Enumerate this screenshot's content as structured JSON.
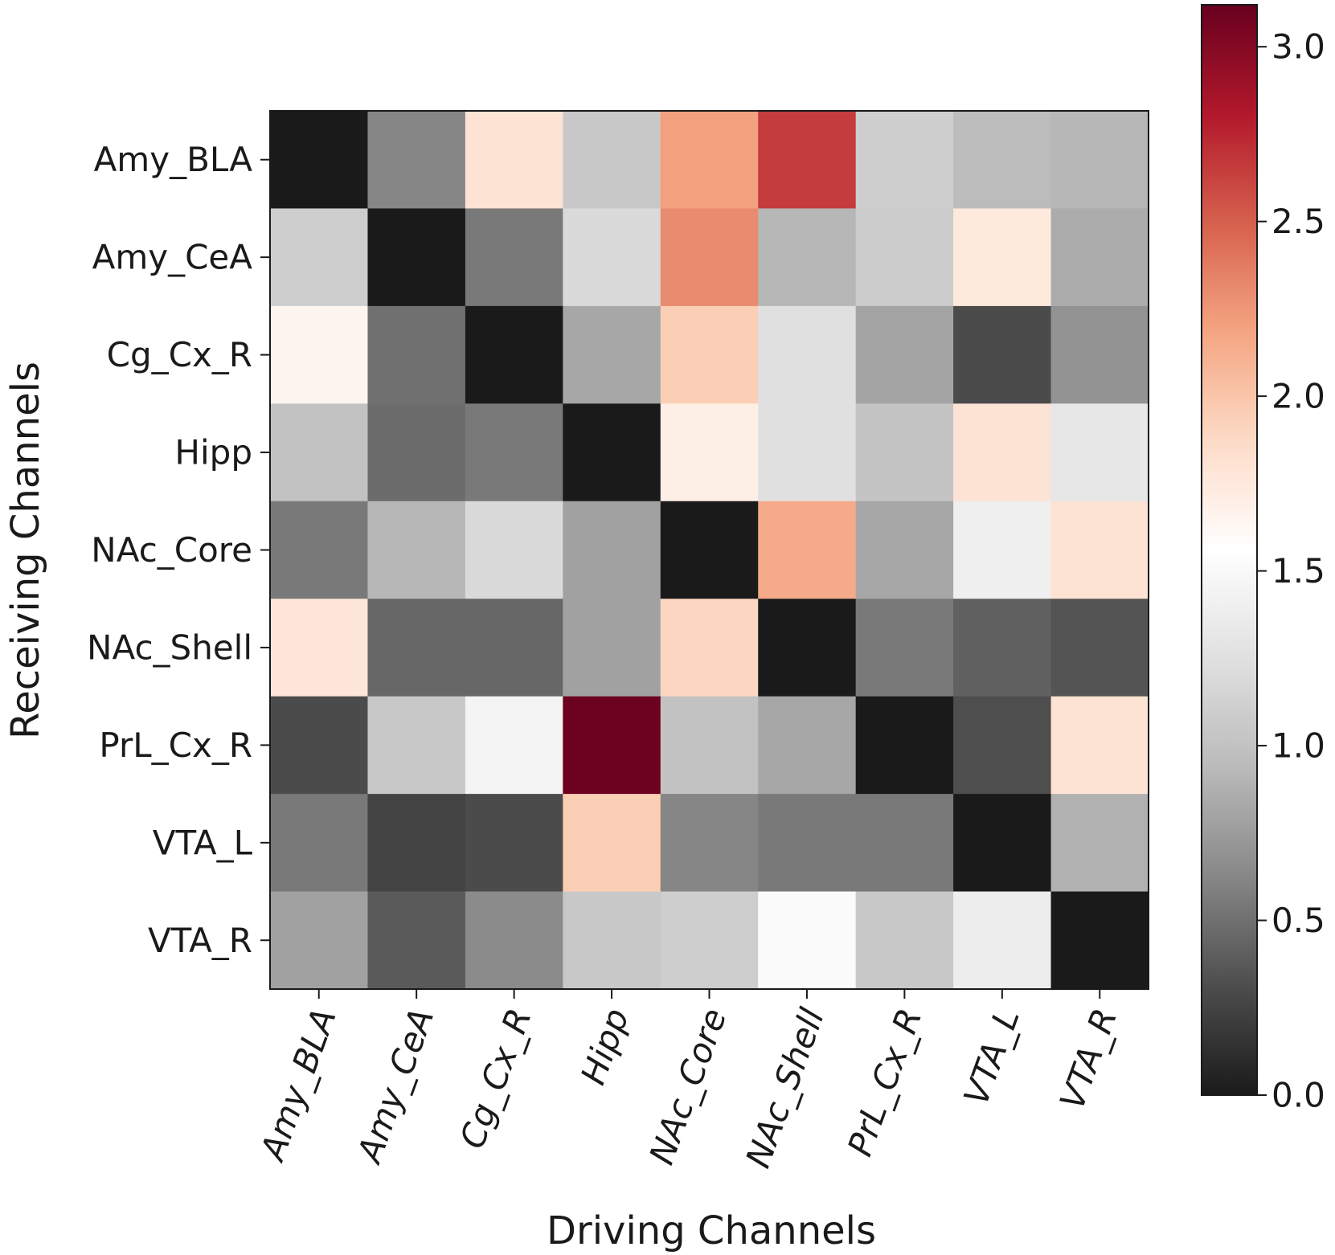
{
  "chart_data": {
    "type": "heatmap",
    "title": "",
    "xlabel": "Driving Channels",
    "ylabel": "Receiving Channels",
    "x_categories": [
      "Amy_BLA",
      "Amy_CeA",
      "Cg_Cx_R",
      "Hipp",
      "NAc_Core",
      "NAc_Shell",
      "PrL_Cx_R",
      "VTA_L",
      "VTA_R"
    ],
    "y_categories": [
      "Amy_BLA",
      "Amy_CeA",
      "Cg_Cx_R",
      "Hipp",
      "NAc_Core",
      "NAc_Shell",
      "PrL_Cx_R",
      "VTA_L",
      "VTA_R"
    ],
    "values": [
      [
        0.0,
        0.62,
        1.8,
        1.05,
        2.2,
        2.65,
        1.1,
        0.95,
        0.92
      ],
      [
        1.1,
        0.0,
        0.55,
        1.2,
        2.3,
        0.92,
        1.08,
        1.75,
        0.85
      ],
      [
        1.65,
        0.5,
        0.0,
        0.82,
        1.95,
        1.25,
        0.8,
        0.3,
        0.7
      ],
      [
        1.0,
        0.48,
        0.55,
        0.0,
        1.7,
        1.25,
        1.02,
        1.8,
        1.32
      ],
      [
        0.55,
        0.92,
        1.2,
        0.78,
        0.0,
        2.15,
        0.82,
        1.4,
        1.8
      ],
      [
        1.78,
        0.45,
        0.45,
        0.78,
        1.9,
        0.0,
        0.55,
        0.42,
        0.35
      ],
      [
        0.3,
        1.05,
        1.45,
        3.1,
        1.0,
        0.82,
        0.0,
        0.32,
        1.8
      ],
      [
        0.55,
        0.25,
        0.3,
        1.95,
        0.62,
        0.55,
        0.55,
        0.0,
        0.88
      ],
      [
        0.78,
        0.38,
        0.65,
        1.05,
        1.1,
        1.52,
        1.05,
        1.38,
        0.0
      ]
    ],
    "colorbar": {
      "range": [
        0.0,
        3.12
      ],
      "ticks": [
        "0.0",
        "0.5",
        "1.0",
        "1.5",
        "2.0",
        "2.5",
        "3.0"
      ],
      "colormap": "RdGy_r"
    }
  }
}
